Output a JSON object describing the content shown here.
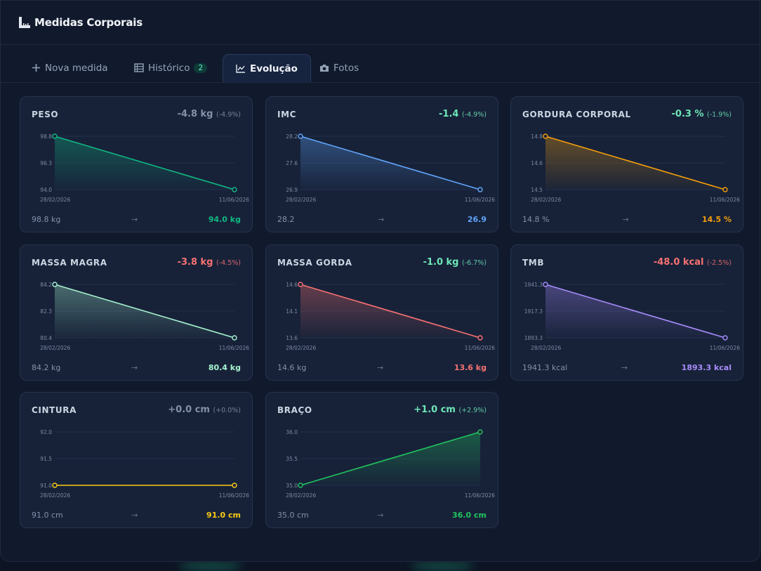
{
  "app": {
    "title": "Medidas Corporais"
  },
  "tabs": [
    {
      "label": "Nova medida",
      "icon": "plus-icon"
    },
    {
      "label": "Histórico",
      "icon": "table-icon",
      "badge": "2"
    },
    {
      "label": "Evolução",
      "icon": "line-chart-icon",
      "active": true
    },
    {
      "label": "Fotos",
      "icon": "camera-icon"
    }
  ],
  "cards": [
    {
      "label": "PESO",
      "delta": "-4.8 kg",
      "pct": "(-4.9%)",
      "deltaColor": "#8391a8",
      "color": "#10b981",
      "ticks": [
        "98.8",
        "96.3",
        "94.0"
      ],
      "ylim": [
        94.0,
        98.8
      ],
      "x": [
        "28/02/2026",
        "11/06/2026"
      ],
      "y": [
        98.8,
        94.0
      ],
      "from": "98.8 kg",
      "arrow": "→",
      "to": "94.0 kg"
    },
    {
      "label": "IMC",
      "delta": "-1.4",
      "pct": "(-4.9%)",
      "deltaColor": "#6ee7b7",
      "color": "#60a5fa",
      "ticks": [
        "28.2",
        "27.6",
        "26.9"
      ],
      "ylim": [
        26.9,
        28.2
      ],
      "x": [
        "28/02/2026",
        "11/06/2026"
      ],
      "y": [
        28.2,
        26.9
      ],
      "from": "28.2",
      "arrow": "→",
      "to": "26.9"
    },
    {
      "label": "GORDURA CORPORAL",
      "delta": "-0.3 %",
      "pct": "(-1.9%)",
      "deltaColor": "#6ee7b7",
      "color": "#f59e0b",
      "ticks": [
        "14.8",
        "14.6",
        "14.5"
      ],
      "ylim": [
        14.5,
        14.8
      ],
      "x": [
        "28/02/2026",
        "11/06/2026"
      ],
      "y": [
        14.8,
        14.5
      ],
      "from": "14.8 %",
      "arrow": "→",
      "to": "14.5 %"
    },
    {
      "label": "MASSA MAGRA",
      "delta": "-3.8 kg",
      "pct": "(-4.5%)",
      "deltaColor": "#f87171",
      "color": "#a7f3d0",
      "ticks": [
        "84.2",
        "82.3",
        "80.4"
      ],
      "ylim": [
        80.4,
        84.2
      ],
      "x": [
        "28/02/2026",
        "11/06/2026"
      ],
      "y": [
        84.2,
        80.4
      ],
      "from": "84.2 kg",
      "arrow": "→",
      "to": "80.4 kg"
    },
    {
      "label": "MASSA GORDA",
      "delta": "-1.0 kg",
      "pct": "(-6.7%)",
      "deltaColor": "#6ee7b7",
      "color": "#f87171",
      "ticks": [
        "14.6",
        "14.1",
        "13.6"
      ],
      "ylim": [
        13.6,
        14.6
      ],
      "x": [
        "28/02/2026",
        "11/06/2026"
      ],
      "y": [
        14.6,
        13.6
      ],
      "from": "14.6 kg",
      "arrow": "→",
      "to": "13.6 kg"
    },
    {
      "label": "TMB",
      "delta": "-48.0 kcal",
      "pct": "(-2.5%)",
      "deltaColor": "#f87171",
      "color": "#a78bfa",
      "ticks": [
        "1941.3",
        "1917.3",
        "1893.3"
      ],
      "ylim": [
        1893.3,
        1941.3
      ],
      "x": [
        "28/02/2026",
        "11/06/2026"
      ],
      "y": [
        1941.3,
        1893.3
      ],
      "from": "1941.3 kcal",
      "arrow": "→",
      "to": "1893.3 kcal"
    },
    {
      "label": "CINTURA",
      "delta": "+0.0 cm",
      "pct": "(+0.0%)",
      "deltaColor": "#8391a8",
      "color": "#facc15",
      "ticks": [
        "92.0",
        "91.5",
        "91.0"
      ],
      "ylim": [
        91.0,
        92.0
      ],
      "x": [
        "28/02/2026",
        "11/06/2026"
      ],
      "y": [
        91.0,
        91.0
      ],
      "from": "91.0 cm",
      "arrow": "→",
      "to": "91.0 cm"
    },
    {
      "label": "BRAÇO",
      "delta": "+1.0 cm",
      "pct": "(+2.9%)",
      "deltaColor": "#6ee7b7",
      "color": "#22c55e",
      "ticks": [
        "36.0",
        "35.5",
        "35.0"
      ],
      "ylim": [
        35.0,
        36.0
      ],
      "x": [
        "28/02/2026",
        "11/06/2026"
      ],
      "y": [
        35.0,
        36.0
      ],
      "from": "35.0 cm",
      "arrow": "→",
      "to": "36.0 cm"
    }
  ]
}
